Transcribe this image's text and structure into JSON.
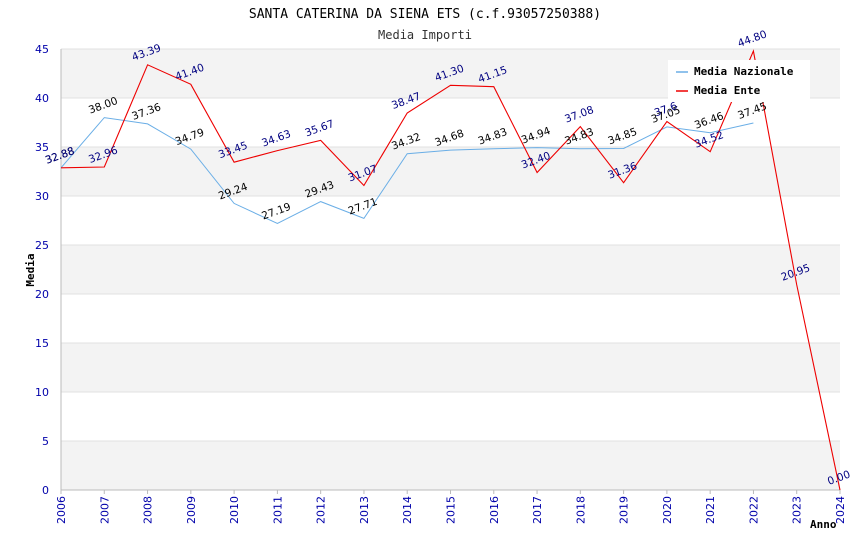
{
  "chart_data": {
    "type": "line",
    "title": "SANTA CATERINA DA SIENA ETS (c.f.93057250388)",
    "subtitle": "Media Importi",
    "xlabel": "Anno",
    "ylabel": "Media",
    "ylim": [
      0,
      45
    ],
    "yticks": [
      "0",
      "5",
      "10",
      "15",
      "20",
      "25",
      "30",
      "35",
      "40",
      "45"
    ],
    "categories": [
      "2006",
      "2007",
      "2008",
      "2009",
      "2010",
      "2011",
      "2012",
      "2013",
      "2014",
      "2015",
      "2016",
      "2017",
      "2018",
      "2019",
      "2020",
      "2021",
      "2022",
      "2023",
      "2024"
    ],
    "grid": true,
    "legend_position": "top-right",
    "series": [
      {
        "name": "Media Nazionale",
        "color": "#6aaee6",
        "label_color": "#000000",
        "values": [
          32.88,
          38.0,
          37.36,
          34.79,
          29.24,
          27.19,
          29.43,
          27.71,
          34.32,
          34.68,
          34.83,
          34.94,
          34.83,
          34.85,
          37.05,
          36.46,
          37.45,
          null,
          null
        ],
        "labels": [
          "32.88",
          "38.00",
          "37.36",
          "34.79",
          "29.24",
          "27.19",
          "29.43",
          "27.71",
          "34.32",
          "34.68",
          "34.83",
          "34.94",
          "34.83",
          "34.85",
          "37.05",
          "36.46",
          "37.45",
          null,
          null
        ]
      },
      {
        "name": "Media Ente",
        "color": "#ee0000",
        "label_color": "#000080",
        "values": [
          32.88,
          32.96,
          43.39,
          41.4,
          33.45,
          34.63,
          35.67,
          31.07,
          38.47,
          41.3,
          41.15,
          32.4,
          37.08,
          31.36,
          37.6,
          34.52,
          44.8,
          20.95,
          0.0
        ],
        "labels": [
          "32.88",
          "32.96",
          "43.39",
          "41.40",
          "33.45",
          "34.63",
          "35.67",
          "31.07",
          "38.47",
          "41.30",
          "41.15",
          "32.40",
          "37.08",
          "31.36",
          "37.6",
          "34.52",
          "44.80",
          "20.95",
          "0.00"
        ]
      }
    ]
  }
}
